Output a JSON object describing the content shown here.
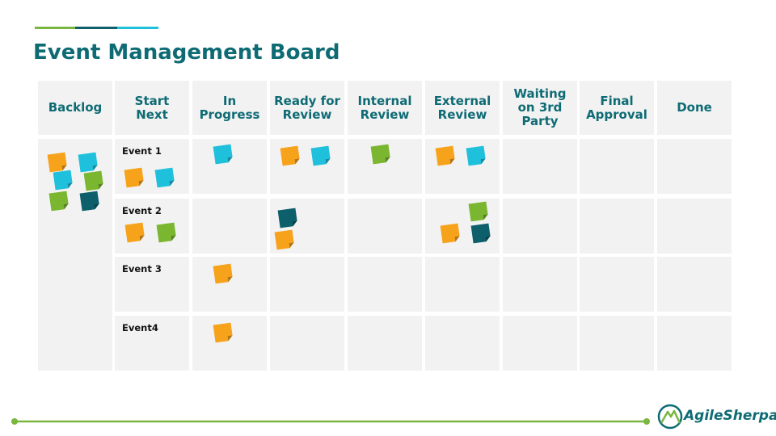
{
  "header": {
    "title": "Event Management Board"
  },
  "board": {
    "columns": [
      {
        "lines": [
          "Backlog"
        ]
      },
      {
        "lines": [
          "Start",
          "Next"
        ]
      },
      {
        "lines": [
          "In",
          "Progress"
        ]
      },
      {
        "lines": [
          "Ready for",
          "Review"
        ]
      },
      {
        "lines": [
          "Internal",
          "Review"
        ]
      },
      {
        "lines": [
          "External",
          "Review"
        ]
      },
      {
        "lines": [
          "Waiting",
          "on 3rd",
          "Party"
        ]
      },
      {
        "lines": [
          "Final",
          "Approval"
        ]
      },
      {
        "lines": [
          "Done"
        ]
      }
    ],
    "rows": [
      "Event 1",
      "Event 2",
      "Event 3",
      "Event4"
    ]
  },
  "footer": {
    "logo": "AgileSherpas"
  }
}
